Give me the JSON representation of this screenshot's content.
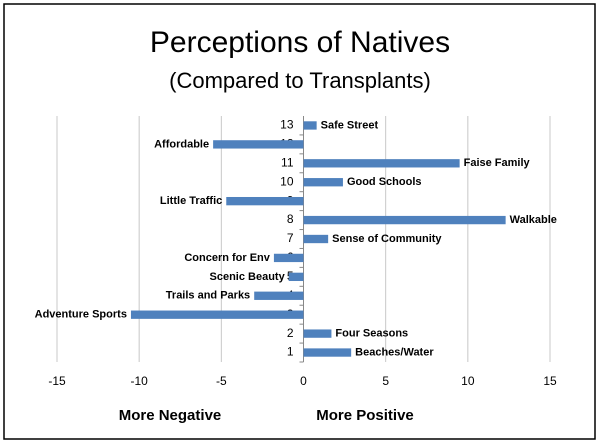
{
  "chart_data": {
    "type": "barh",
    "title": "Perceptions of Natives",
    "subtitle": "(Compared to Transplants)",
    "categories": [
      "1",
      "2",
      "3",
      "4",
      "5",
      "6",
      "7",
      "8",
      "9",
      "10",
      "11",
      "12",
      "13"
    ],
    "values": [
      2.9,
      1.7,
      -10.5,
      -3.0,
      -0.9,
      -1.8,
      1.5,
      12.3,
      -4.7,
      2.4,
      9.5,
      -5.5,
      0.8
    ],
    "bar_labels": [
      "Beaches/Water",
      "Four Seasons",
      "Adventure Sports",
      "Trails and Parks",
      "Scenic Beauty",
      "Concern for Env",
      "Sense of Community",
      "Walkable",
      "Little Traffic",
      "Good Schools",
      "Faise Family",
      "Affordable",
      "Safe Street"
    ],
    "color": "#4f81bd",
    "xlim": [
      -15,
      15
    ],
    "xticks": [
      -15,
      -10,
      -5,
      0,
      5,
      10,
      15
    ],
    "grid": true,
    "annotations": [
      "More Negative",
      "More Positive"
    ]
  }
}
